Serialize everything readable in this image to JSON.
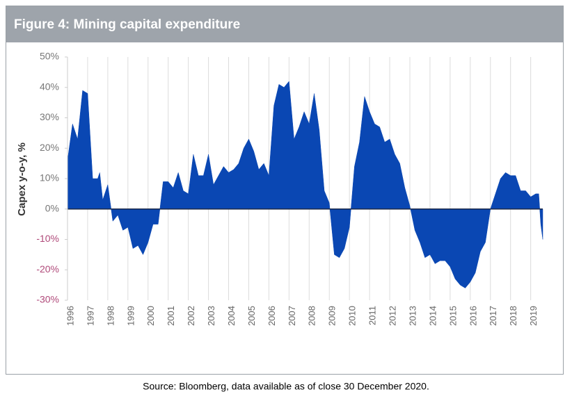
{
  "chart_data": {
    "type": "area",
    "title": "Figure 4: Mining capital expenditure",
    "y_label": "Capex y-o-y, %",
    "source": "Source: Bloomberg, data available as of close 30 December 2020.",
    "color": "#0a47b3",
    "negative_tick_color": "#b04a7a",
    "grid": true,
    "xlim": [
      1996,
      2019.6
    ],
    "xticks": [
      1996,
      1997,
      1998,
      1999,
      2000,
      2001,
      2002,
      2003,
      2004,
      2005,
      2006,
      2007,
      2008,
      2009,
      2010,
      2011,
      2012,
      2013,
      2014,
      2015,
      2016,
      2017,
      2018,
      2019
    ],
    "ylim": [
      -30,
      50
    ],
    "yticks": [
      {
        "value": 50,
        "label": "50%"
      },
      {
        "value": 40,
        "label": "40%"
      },
      {
        "value": 30,
        "label": "30%"
      },
      {
        "value": 20,
        "label": "20%"
      },
      {
        "value": 10,
        "label": "10%"
      },
      {
        "value": 0,
        "label": "0%"
      },
      {
        "value": -10,
        "label": "-10%"
      },
      {
        "value": -20,
        "label": "-20%"
      },
      {
        "value": -30,
        "label": "-30%"
      }
    ],
    "x": [
      1996,
      1996.25,
      1996.5,
      1996.75,
      1997,
      1997.25,
      1997.5,
      1997.6,
      1997.75,
      1998,
      1998.25,
      1998.5,
      1998.75,
      1999,
      1999.25,
      1999.5,
      1999.75,
      2000,
      2000.25,
      2000.5,
      2000.75,
      2001,
      2001.25,
      2001.5,
      2001.75,
      2002,
      2002.25,
      2002.5,
      2002.75,
      2003,
      2003.25,
      2003.5,
      2003.75,
      2004,
      2004.25,
      2004.5,
      2004.75,
      2005,
      2005.25,
      2005.5,
      2005.75,
      2006,
      2006.25,
      2006.5,
      2006.75,
      2007,
      2007.25,
      2007.5,
      2007.75,
      2008,
      2008.25,
      2008.5,
      2008.75,
      2009,
      2009.25,
      2009.5,
      2009.75,
      2010,
      2010.25,
      2010.5,
      2010.75,
      2011,
      2011.25,
      2011.5,
      2011.75,
      2012,
      2012.25,
      2012.5,
      2012.75,
      2013,
      2013.25,
      2013.5,
      2013.75,
      2014,
      2014.25,
      2014.5,
      2014.75,
      2015,
      2015.25,
      2015.5,
      2015.75,
      2016,
      2016.25,
      2016.5,
      2016.75,
      2017,
      2017.25,
      2017.5,
      2017.75,
      2018,
      2018.25,
      2018.5,
      2018.75,
      2019,
      2019.25,
      2019.4,
      2019.5,
      2019.6
    ],
    "values": [
      16,
      28,
      23,
      39,
      38,
      10,
      10,
      12,
      3,
      8,
      -4,
      -2,
      -7,
      -6,
      -13,
      -12,
      -15,
      -11,
      -5,
      -5,
      9,
      9,
      7,
      12,
      6,
      5,
      18,
      11,
      11,
      18,
      8,
      11,
      14,
      12,
      13,
      15,
      20,
      23,
      19,
      13,
      15,
      11,
      34,
      41,
      40,
      42,
      23,
      27,
      32,
      28,
      38,
      26,
      6,
      2,
      -15,
      -16,
      -13,
      -6,
      14,
      22,
      37,
      32,
      28,
      27,
      22,
      23,
      18,
      15,
      7,
      1,
      -7,
      -11,
      -16,
      -15,
      -18,
      -17,
      -17,
      -19,
      -23,
      -25,
      -26,
      -24,
      -21,
      -14,
      -11,
      0,
      5,
      10,
      12,
      11,
      11,
      6,
      6,
      4,
      5,
      5,
      -5,
      -10
    ]
  }
}
